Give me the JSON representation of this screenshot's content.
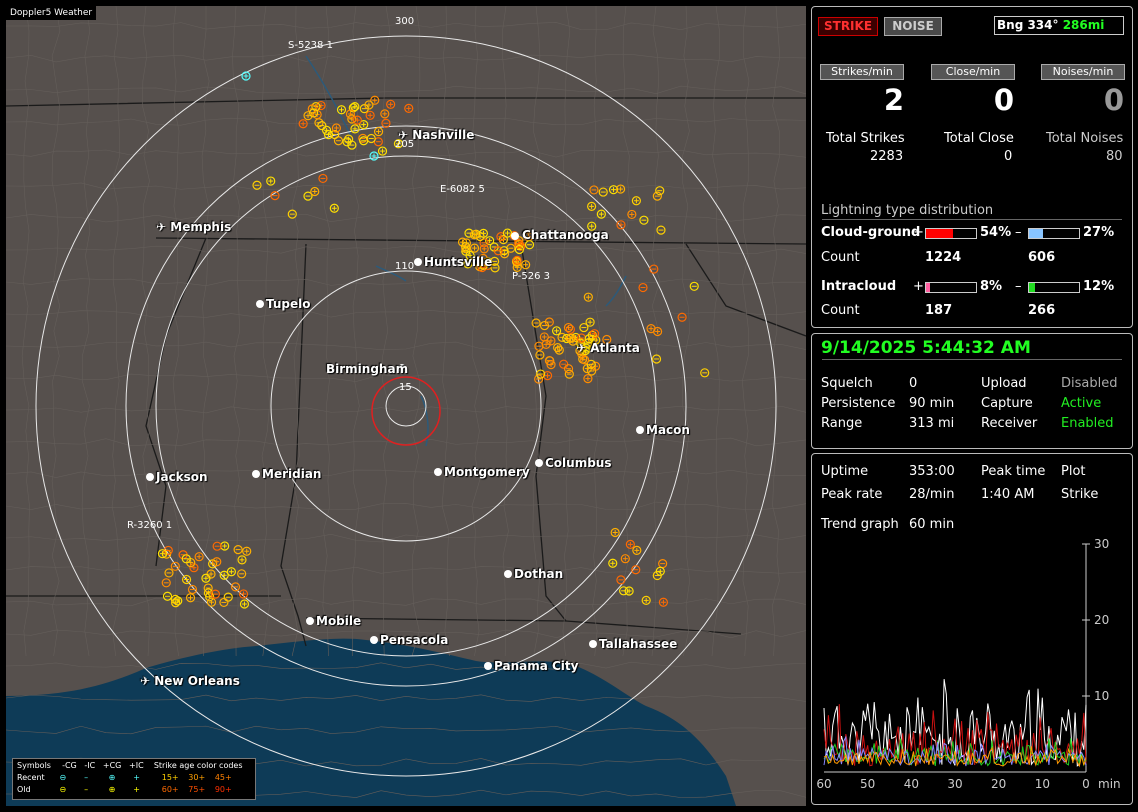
{
  "app_title": "Doppler5 Weather",
  "status": {
    "strike_label": "STRIKE",
    "noise_label": "NOISE",
    "bearing_label": "Bng 334°",
    "distance_label": "286mi"
  },
  "rates": {
    "strikes_header": "Strikes/min",
    "close_header": "Close/min",
    "noises_header": "Noises/min",
    "strikes_value": "2",
    "close_value": "0",
    "noises_value": "0"
  },
  "totals": {
    "strikes_label": "Total Strikes",
    "close_label": "Total Close",
    "noises_label": "Total Noises",
    "strikes_value": "2283",
    "close_value": "0",
    "noises_value": "80"
  },
  "distribution": {
    "title": "Lightning type distribution",
    "cg_label": "Cloud-ground",
    "cg_plus_sign": "+",
    "cg_plus_pct": "54%",
    "cg_plus_fraction": 0.54,
    "cg_minus_sign": "–",
    "cg_minus_pct": "27%",
    "cg_minus_fraction": 0.27,
    "count_label": "Count",
    "cg_plus_count": "1224",
    "cg_minus_count": "606",
    "ic_label": "Intracloud",
    "ic_plus_sign": "+",
    "ic_plus_pct": "8%",
    "ic_plus_fraction": 0.08,
    "ic_minus_sign": "–",
    "ic_minus_pct": "12%",
    "ic_minus_fraction": 0.12,
    "ic_plus_count": "187",
    "ic_minus_count": "266",
    "colors": {
      "cg_plus": "#ff0000",
      "cg_minus": "#88c4ff",
      "ic_plus": "#ff5fa0",
      "ic_minus": "#22dd22"
    }
  },
  "datetime": "9/14/2025 5:44:32 AM",
  "settings": {
    "squelch_label": "Squelch",
    "squelch_value": "0",
    "persistence_label": "Persistence",
    "persistence_value": "90 min",
    "range_label": "Range",
    "range_value": "313 mi",
    "upload_label": "Upload",
    "upload_value": "Disabled",
    "capture_label": "Capture",
    "capture_value": "Active",
    "receiver_label": "Receiver",
    "receiver_value": "Enabled"
  },
  "stats": {
    "uptime_label": "Uptime",
    "uptime_value": "353:00",
    "peak_time_label": "Peak time",
    "peak_time_value": "1:40 AM",
    "plot_label": "Plot",
    "plot_value": "Strike",
    "peak_rate_label": "Peak rate",
    "peak_rate_value": "28/min",
    "trend_label": "Trend graph",
    "trend_value": "60 min"
  },
  "chart_data": {
    "type": "line",
    "x_ticks": [
      "60",
      "50",
      "40",
      "30",
      "20",
      "10",
      "0"
    ],
    "x_unit": "min",
    "y_ticks": [
      "30",
      "20",
      "10"
    ],
    "ylim": [
      0,
      30
    ],
    "xlim": [
      60,
      0
    ]
  },
  "map": {
    "cities": [
      {
        "name": "Nashville",
        "airport": true
      },
      {
        "name": "Memphis",
        "airport": true
      },
      {
        "name": "Chattanooga",
        "airport": false
      },
      {
        "name": "Huntsville",
        "airport": false
      },
      {
        "name": "Tupelo",
        "airport": false
      },
      {
        "name": "Atlanta",
        "airport": true
      },
      {
        "name": "Birmingham",
        "airport": false
      },
      {
        "name": "Macon",
        "airport": false
      },
      {
        "name": "Jackson",
        "airport": false
      },
      {
        "name": "Meridian",
        "airport": false
      },
      {
        "name": "Montgomery",
        "airport": false
      },
      {
        "name": "Columbus",
        "airport": false
      },
      {
        "name": "Dothan",
        "airport": false
      },
      {
        "name": "Mobile",
        "airport": false
      },
      {
        "name": "Pensacola",
        "airport": false
      },
      {
        "name": "Tallahassee",
        "airport": false
      },
      {
        "name": "Panama City",
        "airport": false
      },
      {
        "name": "New Orleans",
        "airport": true
      }
    ],
    "ring_labels": [
      "300",
      "205",
      "110",
      "15"
    ],
    "storm_labels": [
      "S-5238 1",
      "E-6082 5",
      "P-526 3",
      "R-3260 1"
    ]
  },
  "legend": {
    "symbols_title": "Symbols",
    "col_headers": [
      "-CG",
      "-IC",
      "+CG",
      "+IC"
    ],
    "recent_label": "Recent",
    "old_label": "Old",
    "age_title": "Strike age color codes",
    "recent_ages": [
      "15+",
      "30+",
      "45+"
    ],
    "old_ages": [
      "60+",
      "75+",
      "90+"
    ]
  }
}
